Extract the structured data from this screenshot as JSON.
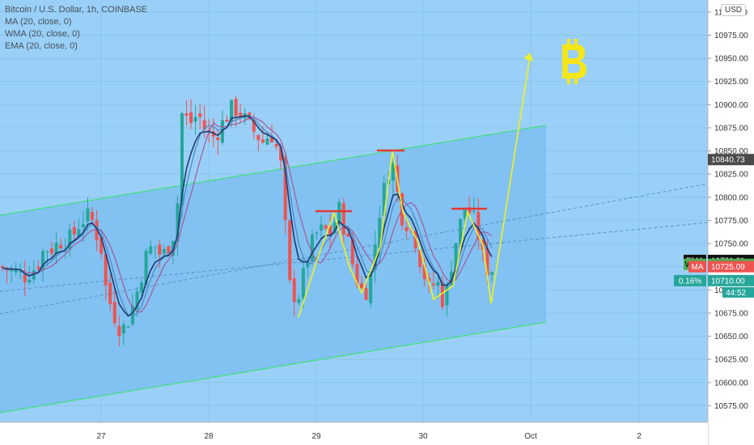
{
  "chart_data": {
    "type": "candlestick",
    "title": "Bitcoin / U.S. Dollar, 1h, COINBASE",
    "indicators": [
      "MA (20, close, 0)",
      "WMA (20, close, 0)",
      "EMA (20, close, 0)"
    ],
    "currency": "USD",
    "x_ticks": [
      "27",
      "28",
      "29",
      "30",
      "Oct",
      "2"
    ],
    "y_ticks": [
      10575,
      10600,
      10625,
      10650,
      10675,
      10700,
      10725,
      10750,
      10775,
      10800,
      10825,
      10850,
      10875,
      10900,
      10925,
      10950,
      10975,
      11000
    ],
    "y_tick_labels": [
      "10575.00",
      "10600.00",
      "10625.00",
      "10650.00",
      "10675.00",
      "10700.00",
      "10725.00",
      "10750.00",
      "10775.00",
      "10800.00",
      "10825.00",
      "10850.00",
      "10875.00",
      "10900.00",
      "10925.00",
      "10950.00",
      "10975.00",
      "11000.00"
    ],
    "ylim": [
      10557,
      11013
    ],
    "price_labels": [
      {
        "id": "last-high",
        "text": "10840.73",
        "value": 10840.73,
        "color": "#4a4a4a",
        "label": ""
      },
      {
        "id": "ema",
        "text": "10731.81",
        "value": 10731.81,
        "color": "#111111",
        "label": "EMA"
      },
      {
        "id": "wma",
        "text": "10727.64",
        "value": 10727.64,
        "color": "#4caf50",
        "label": "WMA"
      },
      {
        "id": "ma",
        "text": "10725.09",
        "value": 10725.09,
        "color": "#ef5350",
        "label": "MA"
      },
      {
        "id": "change",
        "text": "10710.00",
        "value": 10710.0,
        "color": "#26a69a",
        "label": "0.16%"
      }
    ],
    "countdown": "44:52",
    "candle_colors": {
      "up": "#26a69a",
      "down": "#ef5350"
    },
    "ma_colors": {
      "ema": "#1f3b6e",
      "wma": "#4f86c2",
      "ma": "#a35a9a"
    },
    "annotation_colors": {
      "channel": "#3ee07a",
      "pattern": "#f0f21e",
      "resistance": "#e53935",
      "bitcoin": "#f5e61a"
    },
    "background": "#9ad0f7"
  }
}
